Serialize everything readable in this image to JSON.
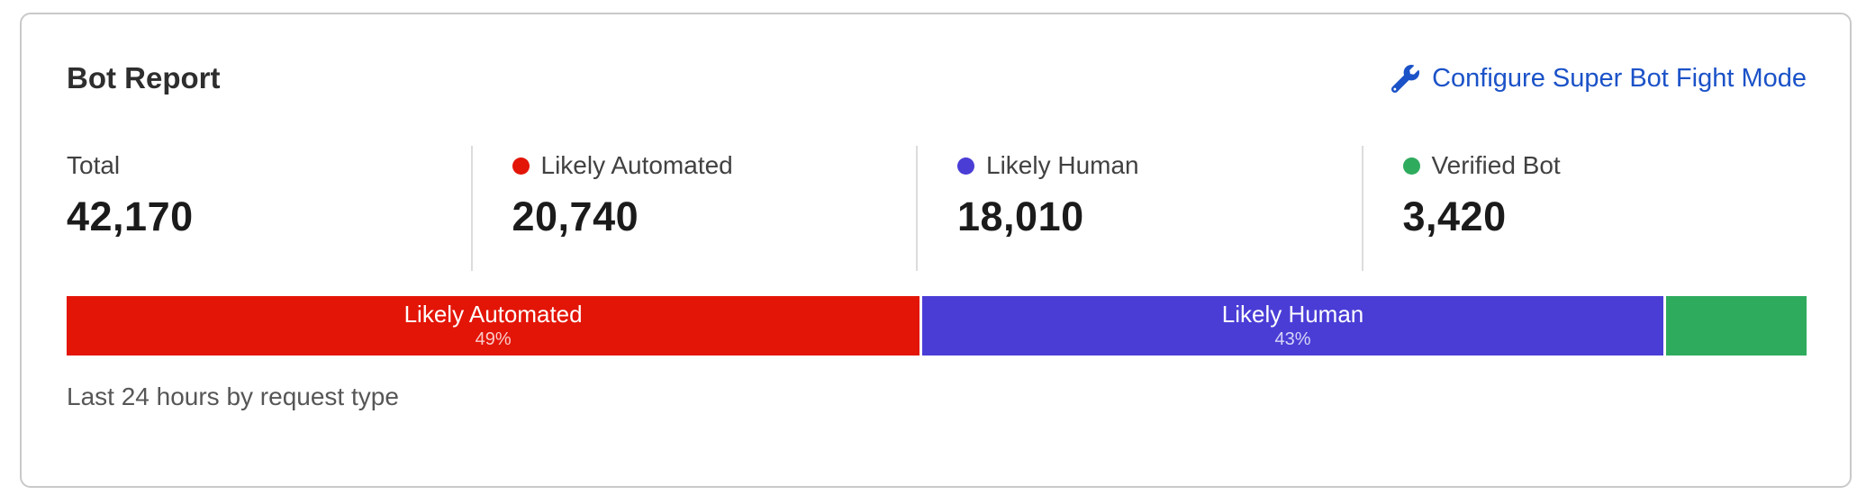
{
  "card": {
    "title": "Bot Report",
    "configure_link": {
      "label": "Configure Super Bot Fight Mode",
      "icon": "wrench-icon",
      "color": "#1b52c8"
    },
    "stats": [
      {
        "label": "Total",
        "value": "42,170"
      },
      {
        "label": "Likely Automated",
        "value": "20,740",
        "dot_color": "#e31507"
      },
      {
        "label": "Likely Human",
        "value": "18,010",
        "dot_color": "#4a3dd6"
      },
      {
        "label": "Verified Bot",
        "value": "3,420",
        "dot_color": "#2fab5e"
      }
    ],
    "caption": "Last 24 hours by request type"
  },
  "chart_data": {
    "type": "bar",
    "subtype": "stacked-horizontal",
    "title": "Bot Report",
    "note": "Last 24 hours by request type",
    "total": 42170,
    "legend_position": "top",
    "segments": [
      {
        "name": "Likely Automated",
        "value": 20740,
        "percent": 49.18,
        "label": "Likely Automated",
        "sub": "49%",
        "color": "#e31507"
      },
      {
        "name": "Likely Human",
        "value": 18010,
        "percent": 42.71,
        "label": "Likely Human",
        "sub": "43%",
        "color": "#4a3dd6"
      },
      {
        "name": "Verified Bot",
        "value": 3420,
        "percent": 8.11,
        "color": "#2fab5e"
      }
    ]
  }
}
